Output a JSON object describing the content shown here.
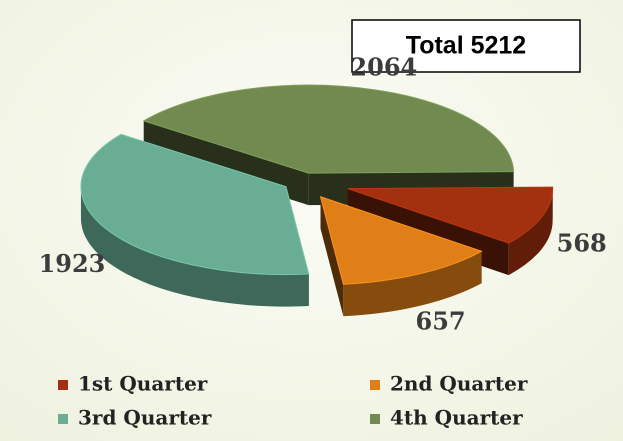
{
  "chart_data": {
    "type": "pie",
    "annotation": "Total 5212",
    "categories": [
      "1st Quarter",
      "2nd Quarter",
      "3rd Quarter",
      "4th Quarter"
    ],
    "values": [
      568,
      657,
      1923,
      2064
    ],
    "colors": [
      "#a3300f",
      "#e07f18",
      "#68ad94",
      "#718a4f"
    ],
    "legend": "bottom"
  }
}
